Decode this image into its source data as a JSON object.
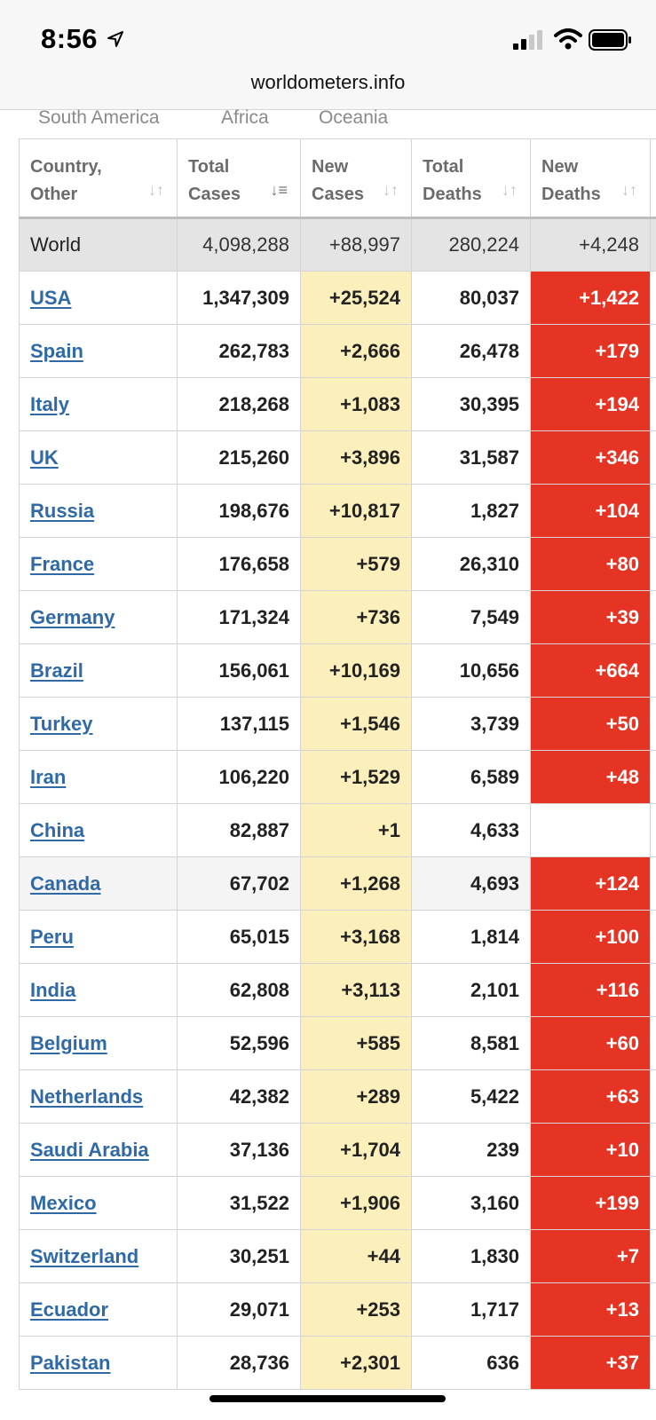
{
  "status": {
    "time": "8:56"
  },
  "browser": {
    "url": "worldometers.info"
  },
  "continents": [
    "South America",
    "Africa",
    "Oceania"
  ],
  "headers": {
    "country_l1": "Country,",
    "country_l2": "Other",
    "total_l1": "Total",
    "total_l2": "Cases",
    "newcases_l1": "New",
    "newcases_l2": "Cases",
    "deaths_l1": "Total",
    "deaths_l2": "Deaths",
    "newdeaths_l1": "New",
    "newdeaths_l2": "Deaths"
  },
  "world": {
    "country": "World",
    "total": "4,098,288",
    "new_cases": "+88,997",
    "total_deaths": "280,224",
    "new_deaths": "+4,248"
  },
  "rows": [
    {
      "country": "USA",
      "total": "1,347,309",
      "new_cases": "+25,524",
      "total_deaths": "80,037",
      "new_deaths": "+1,422"
    },
    {
      "country": "Spain",
      "total": "262,783",
      "new_cases": "+2,666",
      "total_deaths": "26,478",
      "new_deaths": "+179"
    },
    {
      "country": "Italy",
      "total": "218,268",
      "new_cases": "+1,083",
      "total_deaths": "30,395",
      "new_deaths": "+194"
    },
    {
      "country": "UK",
      "total": "215,260",
      "new_cases": "+3,896",
      "total_deaths": "31,587",
      "new_deaths": "+346"
    },
    {
      "country": "Russia",
      "total": "198,676",
      "new_cases": "+10,817",
      "total_deaths": "1,827",
      "new_deaths": "+104"
    },
    {
      "country": "France",
      "total": "176,658",
      "new_cases": "+579",
      "total_deaths": "26,310",
      "new_deaths": "+80"
    },
    {
      "country": "Germany",
      "total": "171,324",
      "new_cases": "+736",
      "total_deaths": "7,549",
      "new_deaths": "+39"
    },
    {
      "country": "Brazil",
      "total": "156,061",
      "new_cases": "+10,169",
      "total_deaths": "10,656",
      "new_deaths": "+664"
    },
    {
      "country": "Turkey",
      "total": "137,115",
      "new_cases": "+1,546",
      "total_deaths": "3,739",
      "new_deaths": "+50"
    },
    {
      "country": "Iran",
      "total": "106,220",
      "new_cases": "+1,529",
      "total_deaths": "6,589",
      "new_deaths": "+48"
    },
    {
      "country": "China",
      "total": "82,887",
      "new_cases": "+1",
      "total_deaths": "4,633",
      "new_deaths": ""
    },
    {
      "country": "Canada",
      "total": "67,702",
      "new_cases": "+1,268",
      "total_deaths": "4,693",
      "new_deaths": "+124"
    },
    {
      "country": "Peru",
      "total": "65,015",
      "new_cases": "+3,168",
      "total_deaths": "1,814",
      "new_deaths": "+100"
    },
    {
      "country": "India",
      "total": "62,808",
      "new_cases": "+3,113",
      "total_deaths": "2,101",
      "new_deaths": "+116"
    },
    {
      "country": "Belgium",
      "total": "52,596",
      "new_cases": "+585",
      "total_deaths": "8,581",
      "new_deaths": "+60"
    },
    {
      "country": "Netherlands",
      "total": "42,382",
      "new_cases": "+289",
      "total_deaths": "5,422",
      "new_deaths": "+63"
    },
    {
      "country": "Saudi Arabia",
      "total": "37,136",
      "new_cases": "+1,704",
      "total_deaths": "239",
      "new_deaths": "+10"
    },
    {
      "country": "Mexico",
      "total": "31,522",
      "new_cases": "+1,906",
      "total_deaths": "3,160",
      "new_deaths": "+199"
    },
    {
      "country": "Switzerland",
      "total": "30,251",
      "new_cases": "+44",
      "total_deaths": "1,830",
      "new_deaths": "+7"
    },
    {
      "country": "Ecuador",
      "total": "29,071",
      "new_cases": "+253",
      "total_deaths": "1,717",
      "new_deaths": "+13"
    },
    {
      "country": "Pakistan",
      "total": "28,736",
      "new_cases": "+2,301",
      "total_deaths": "636",
      "new_deaths": "+37"
    }
  ],
  "colors": {
    "new_cases_bg": "#fbefbb",
    "new_deaths_bg": "#e53424",
    "link": "#2f6aa6",
    "world_row_bg": "#e4e4e4"
  }
}
